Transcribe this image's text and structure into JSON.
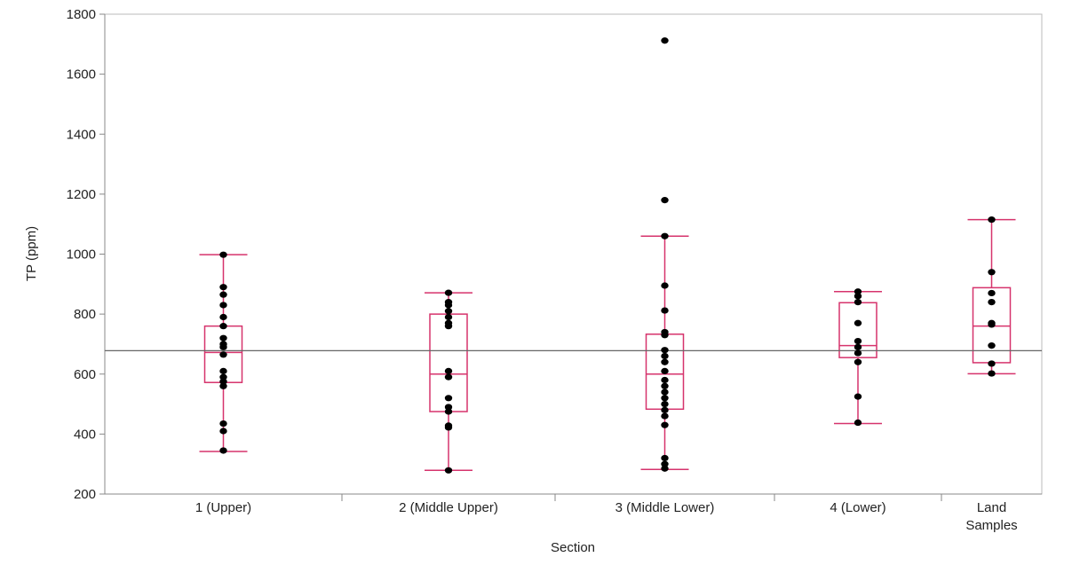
{
  "chart_data": {
    "type": "box",
    "xlabel": "Section",
    "ylabel": "TP (ppm)",
    "ylim": [
      200,
      1800
    ],
    "yticks": [
      200,
      400,
      600,
      800,
      1000,
      1200,
      1400,
      1600,
      1800
    ],
    "reference_line": 678,
    "grid": false,
    "colors": {
      "box": "#d6336c",
      "points": "#000000",
      "reference": "#666666",
      "axis": "#888888"
    },
    "categories": [
      {
        "label_lines": [
          "1 (Upper)"
        ],
        "whisker_low": 342,
        "q1": 572,
        "median": 672,
        "q3": 760,
        "whisker_high": 998,
        "points": [
          345,
          410,
          435,
          560,
          575,
          590,
          610,
          665,
          690,
          700,
          720,
          760,
          790,
          830,
          865,
          890,
          998
        ]
      },
      {
        "label_lines": [
          "2 (Middle Upper)"
        ],
        "whisker_low": 279,
        "q1": 475,
        "median": 600,
        "q3": 800,
        "whisker_high": 871,
        "points": [
          279,
          422,
          428,
          475,
          490,
          520,
          590,
          610,
          760,
          770,
          790,
          810,
          830,
          840,
          871
        ]
      },
      {
        "label_lines": [
          "3 (Middle Lower)"
        ],
        "whisker_low": 282,
        "q1": 483,
        "median": 600,
        "q3": 733,
        "whisker_high": 1060,
        "points": [
          285,
          300,
          320,
          430,
          460,
          480,
          500,
          520,
          540,
          560,
          580,
          610,
          640,
          660,
          680,
          730,
          740,
          812,
          895,
          1060,
          1180,
          1712
        ]
      },
      {
        "label_lines": [
          "4 (Lower)"
        ],
        "whisker_low": 435,
        "q1": 655,
        "median": 695,
        "q3": 838,
        "whisker_high": 875,
        "points": [
          438,
          525,
          640,
          670,
          690,
          710,
          770,
          840,
          860,
          875
        ]
      },
      {
        "label_lines": [
          "Land",
          "Samples"
        ],
        "whisker_low": 601,
        "q1": 638,
        "median": 760,
        "q3": 888,
        "whisker_high": 1115,
        "points": [
          602,
          635,
          695,
          765,
          770,
          840,
          870,
          940,
          1115
        ]
      }
    ]
  }
}
